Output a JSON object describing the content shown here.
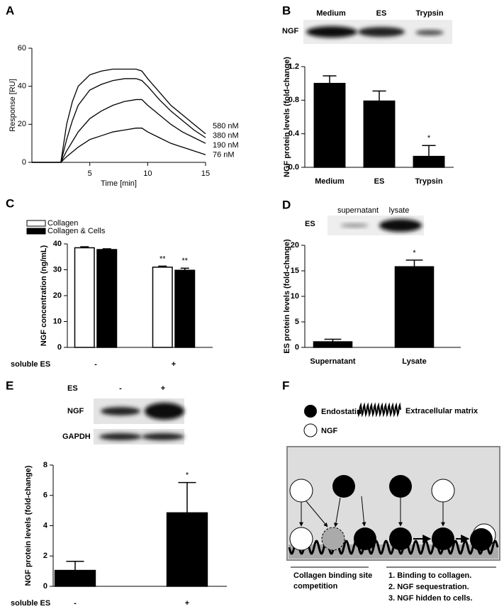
{
  "panels": [
    "A",
    "B",
    "C",
    "D",
    "E",
    "F"
  ],
  "chart_data": [
    {
      "type": "line",
      "x_label": "Time [min]",
      "y_label": "Response [RU]",
      "x": [
        0,
        1,
        2,
        2.5,
        3,
        3.5,
        4,
        5,
        6,
        7,
        8,
        9,
        9.5,
        10,
        11,
        12,
        13,
        14,
        15
      ],
      "series": [
        {
          "name": "580 nM",
          "color": "#000000",
          "values": [
            0,
            0,
            0,
            0,
            20,
            32,
            40,
            46,
            48,
            49,
            49,
            49,
            48,
            44,
            37,
            30,
            25,
            20,
            15
          ]
        },
        {
          "name": "380 nM",
          "color": "#000000",
          "values": [
            0,
            0,
            0,
            0,
            12,
            22,
            30,
            38,
            41,
            43,
            44,
            44,
            43,
            40,
            33,
            27,
            22,
            17,
            13
          ]
        },
        {
          "name": "190 nM",
          "color": "#000000",
          "values": [
            0,
            0,
            0,
            0,
            6,
            11,
            16,
            23,
            27,
            30,
            32,
            33,
            33,
            30,
            25,
            20,
            16,
            13,
            10
          ]
        },
        {
          "name": "76 nM",
          "color": "#000000",
          "values": [
            0,
            0,
            0,
            0,
            3,
            5.5,
            8,
            12,
            14,
            16,
            17,
            18,
            18,
            16,
            13,
            10,
            8,
            6,
            4
          ]
        }
      ],
      "xlim": [
        0,
        15
      ],
      "ylim": [
        0,
        60
      ],
      "xticks": [
        5,
        10,
        15
      ],
      "yticks": [
        0,
        20,
        40,
        60
      ]
    },
    {
      "type": "bar",
      "y_label": "NGF protein levels (fold-change)",
      "categories": [
        "Medium",
        "ES",
        "Trypsin"
      ],
      "values": [
        1.0,
        0.79,
        0.13
      ],
      "errors": [
        0.09,
        0.12,
        0.13
      ],
      "significance": [
        null,
        null,
        "*"
      ],
      "color": "#000000",
      "ylim": [
        0,
        1.2
      ],
      "yticks": [
        {
          "value": 0,
          "label": "0.0"
        },
        0.4,
        0.8,
        1.2
      ]
    },
    {
      "type": "bar",
      "y_label": "NGF concentration (ng/mL)",
      "x_label": "soluble ES",
      "categories": [
        "-",
        "+"
      ],
      "series": [
        {
          "name": "Collagen",
          "color": "#ffffff",
          "values": [
            38.5,
            31
          ],
          "errors": [
            0.4,
            0.4
          ],
          "significance": [
            null,
            "**"
          ]
        },
        {
          "name": "Collagen & Cells",
          "color": "#000000",
          "values": [
            37.8,
            29.8
          ],
          "errors": [
            0.3,
            0.8
          ],
          "significance": [
            null,
            "**"
          ]
        }
      ],
      "ylim": [
        0,
        40
      ],
      "yticks": [
        0,
        10,
        20,
        30,
        40
      ]
    },
    {
      "type": "bar",
      "y_label": "ES protein levels (fold-change)",
      "categories": [
        "Supernatant",
        "Lysate"
      ],
      "values": [
        1.1,
        15.8
      ],
      "errors": [
        0.5,
        1.3
      ],
      "significance": [
        null,
        "*"
      ],
      "color": "#000000",
      "ylim": [
        0,
        20
      ],
      "yticks": [
        0,
        5,
        10,
        15,
        20
      ]
    },
    {
      "type": "bar",
      "y_label": "NGF protein levels (fold-change)",
      "x_label": "soluble ES",
      "categories": [
        "-",
        "+"
      ],
      "values": [
        1.05,
        4.85
      ],
      "errors": [
        0.6,
        2.0
      ],
      "significance": [
        null,
        "*"
      ],
      "color": "#000000",
      "ylim": [
        0,
        8
      ],
      "yticks": [
        0,
        2,
        4,
        6,
        8
      ]
    }
  ],
  "blots": {
    "b": {
      "row_label": "NGF",
      "lanes": [
        "Medium",
        "ES",
        "Trypsin"
      ]
    },
    "d": {
      "row_label": "ES",
      "lanes": [
        "supernatant",
        "lysate"
      ]
    },
    "e": {
      "header": "ES",
      "lanes": [
        "-",
        "+"
      ],
      "rows": [
        "NGF",
        "GAPDH"
      ]
    }
  },
  "diagram": {
    "legend": [
      "Endostatin",
      "NGF",
      "Extracellular matrix"
    ],
    "left_caption": [
      "Collagen binding site",
      "competition"
    ],
    "right_caption": [
      "1. Binding to collagen.",
      "2. NGF sequestration.",
      "3. NGF hidden to cells."
    ]
  }
}
